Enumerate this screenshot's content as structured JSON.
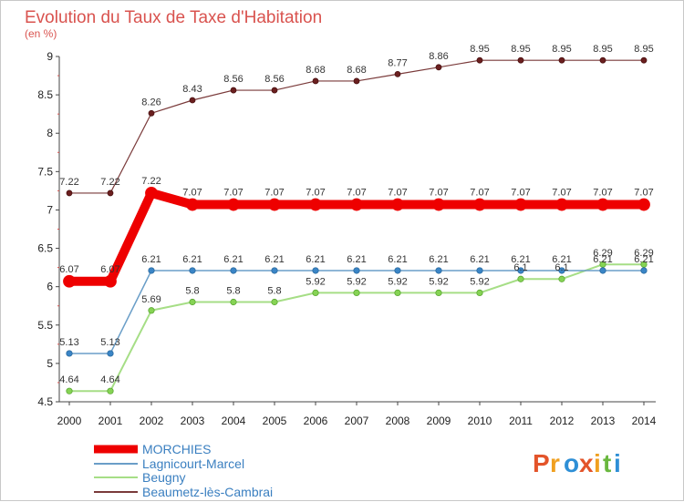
{
  "chart_data": {
    "type": "line",
    "title": "Evolution du Taux de Taxe d'Habitation",
    "unit_label": "(en %)",
    "x": [
      "2000",
      "2001",
      "2002",
      "2003",
      "2004",
      "2005",
      "2006",
      "2007",
      "2008",
      "2009",
      "2010",
      "2011",
      "2012",
      "2013",
      "2014"
    ],
    "ylim": [
      4.5,
      9
    ],
    "yticks": [
      "4.5",
      "5",
      "5.5",
      "6",
      "6.5",
      "7",
      "7.5",
      "8",
      "8.5",
      "9"
    ],
    "grid": false,
    "legend_position": "bottom-left",
    "series": [
      {
        "name": "MORCHIES",
        "color": "#ee0000",
        "values": [
          6.07,
          6.07,
          7.22,
          7.07,
          7.07,
          7.07,
          7.07,
          7.07,
          7.07,
          7.07,
          7.07,
          7.07,
          7.07,
          7.07,
          7.07
        ]
      },
      {
        "name": "Lagnicourt-Marcel",
        "color": "#6a9ec8",
        "values": [
          5.13,
          5.13,
          6.21,
          6.21,
          6.21,
          6.21,
          6.21,
          6.21,
          6.21,
          6.21,
          6.21,
          6.21,
          6.21,
          6.21,
          6.21
        ]
      },
      {
        "name": "Beugny",
        "color": "#a6de86",
        "values": [
          4.64,
          4.64,
          5.69,
          5.8,
          5.8,
          5.8,
          5.92,
          5.92,
          5.92,
          5.92,
          5.92,
          6.1,
          6.1,
          6.29,
          6.29
        ]
      },
      {
        "name": "Beaumetz-lès-Cambrai",
        "color": "#7a3a3a",
        "values": [
          7.22,
          7.22,
          8.26,
          8.43,
          8.56,
          8.56,
          8.68,
          8.68,
          8.77,
          8.86,
          8.95,
          8.95,
          8.95,
          8.95,
          8.95
        ]
      }
    ]
  },
  "logo": {
    "text": "Proxiti",
    "alt": "Proxiti logo"
  }
}
